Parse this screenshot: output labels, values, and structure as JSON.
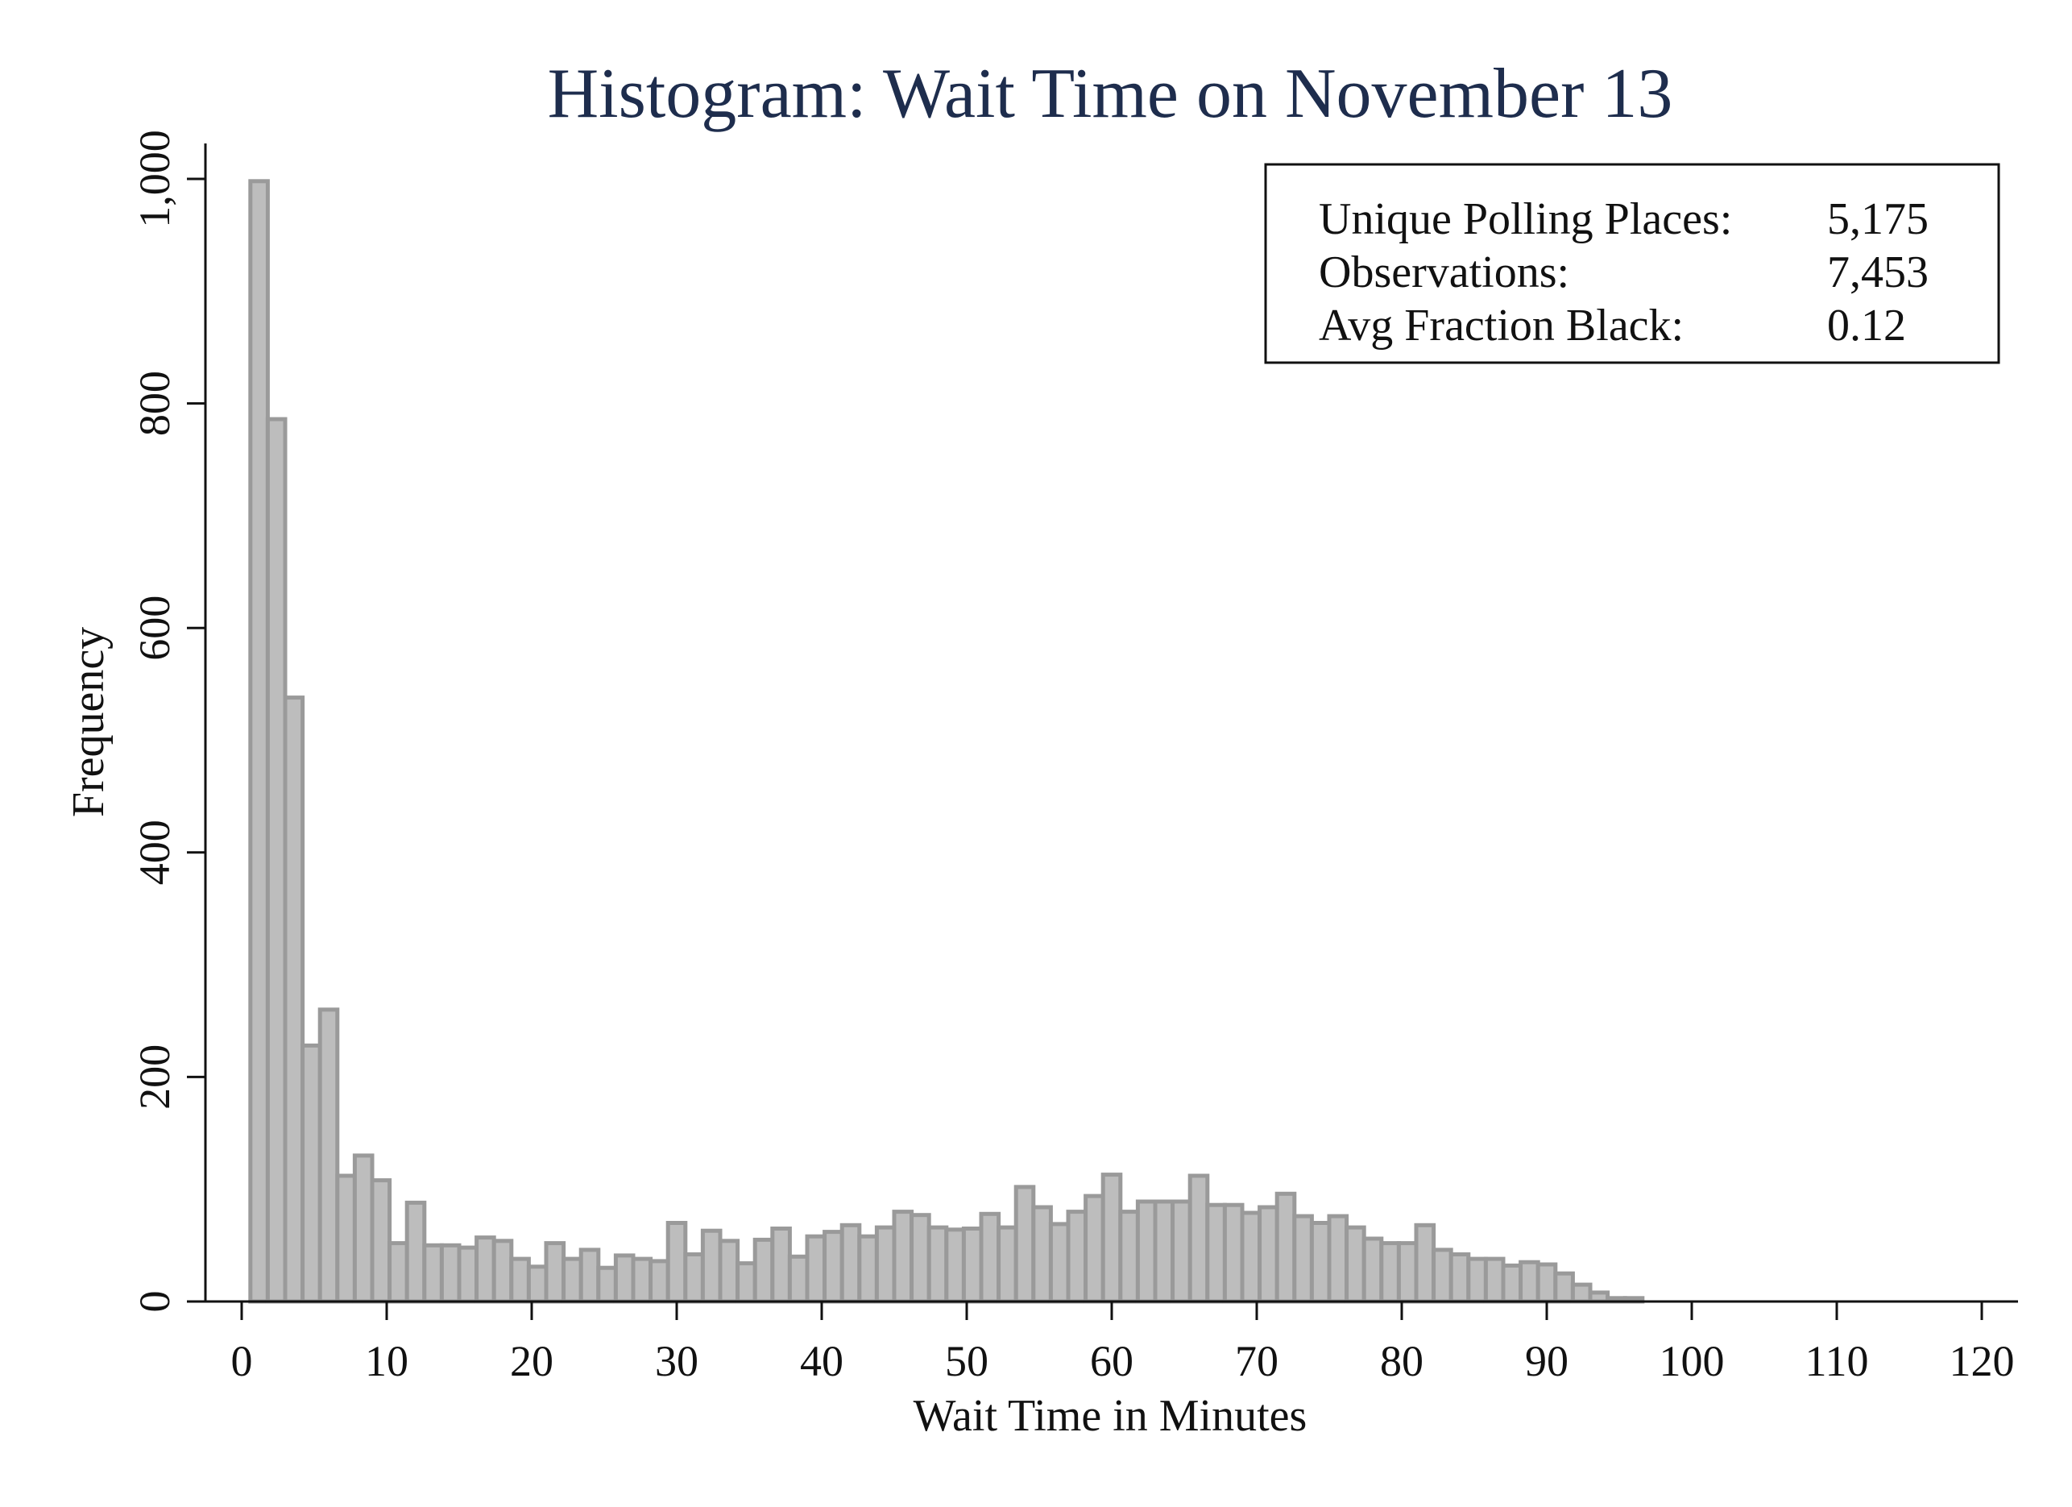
{
  "chart_data": {
    "type": "bar",
    "title": "Histogram: Wait Time on November 13",
    "xlabel": "Wait Time in Minutes",
    "ylabel": "Frequency",
    "xlim": [
      -2,
      122
    ],
    "ylim": [
      0,
      1000
    ],
    "bin_width": 1.2,
    "bin_start": 0.6,
    "x_ticks": [
      {
        "value": 0,
        "label": "0"
      },
      {
        "value": 10,
        "label": "10"
      },
      {
        "value": 20,
        "label": "20"
      },
      {
        "value": 30,
        "label": "30"
      },
      {
        "value": 40,
        "label": "40"
      },
      {
        "value": 50,
        "label": "50"
      },
      {
        "value": 60,
        "label": "60"
      },
      {
        "value": 70,
        "label": "70"
      },
      {
        "value": 80,
        "label": "80"
      },
      {
        "value": 90,
        "label": "90"
      },
      {
        "value": 100,
        "label": "100"
      },
      {
        "value": 110,
        "label": "110"
      },
      {
        "value": 120,
        "label": "120"
      }
    ],
    "y_ticks": [
      {
        "value": 0,
        "label": "0"
      },
      {
        "value": 200,
        "label": "200"
      },
      {
        "value": 400,
        "label": "400"
      },
      {
        "value": 600,
        "label": "600"
      },
      {
        "value": 800,
        "label": "800"
      },
      {
        "value": 1000,
        "label": "1,000"
      }
    ],
    "values": [
      998,
      786,
      538,
      228,
      260,
      112,
      130,
      108,
      52,
      88,
      50,
      50,
      48,
      57,
      54,
      38,
      31,
      52,
      38,
      46,
      30,
      41,
      38,
      36,
      70,
      42,
      63,
      54,
      34,
      55,
      65,
      40,
      58,
      62,
      68,
      58,
      66,
      80,
      77,
      66,
      64,
      65,
      78,
      66,
      102,
      84,
      69,
      80,
      94,
      113,
      80,
      89,
      89,
      89,
      112,
      86,
      86,
      79,
      84,
      96,
      76,
      70,
      76,
      66,
      56,
      52,
      52,
      68,
      46,
      42,
      38,
      38,
      32,
      35,
      33,
      25,
      15,
      8,
      3,
      3
    ],
    "grid": false,
    "legend": "top-right"
  },
  "stats_box": {
    "rows": [
      {
        "label": "Unique Polling Places:",
        "value": "5,175"
      },
      {
        "label": "Observations:",
        "value": "7,453"
      },
      {
        "label": "Avg Fraction Black:",
        "value": "0.12"
      }
    ]
  }
}
